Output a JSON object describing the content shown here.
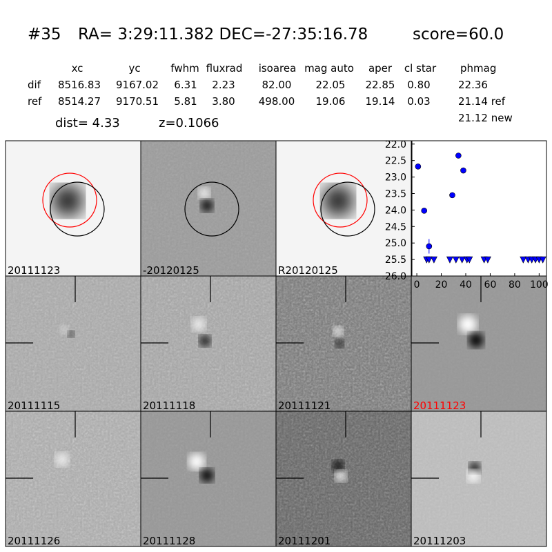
{
  "header": {
    "id": "#35",
    "coords": "RA= 3:29:11.382 DEC=-27:35:16.78",
    "score": "score=60.0"
  },
  "table": {
    "columns": [
      "xc",
      "yc",
      "fwhm",
      "fluxrad",
      "isoarea",
      "mag auto",
      "aper",
      "cl star",
      "phmag"
    ],
    "rows": [
      [
        "dif",
        "8516.83",
        "9167.02",
        "6.31",
        "2.23",
        "82.00",
        "22.05",
        "22.85",
        "0.80",
        "22.36"
      ],
      [
        "ref",
        "8514.27",
        "9170.51",
        "5.81",
        "3.80",
        "498.00",
        "19.06",
        "19.14",
        "0.03",
        "21.14 ref"
      ]
    ],
    "extra": "21.12 new"
  },
  "dist": "dist=  4.33",
  "redshift": "z=0.1066",
  "panels": [
    "20111123",
    "-20120125",
    "R20120125",
    "20111115",
    "20111118",
    "20111121",
    "20111123",
    "20111126",
    "20111128",
    "20111201",
    "20111203"
  ],
  "chart_data": {
    "type": "scatter",
    "xlim": [
      -4,
      106
    ],
    "xticks": [
      0,
      20,
      40,
      60,
      80,
      100
    ],
    "ylim": [
      26.0,
      21.9
    ],
    "yticks": [
      {
        "value": 22,
        "label": "22.0"
      },
      {
        "value": 22.5,
        "label": "22.5"
      },
      {
        "value": 23,
        "label": "23.0"
      },
      {
        "value": 23.5,
        "label": "23.5"
      },
      {
        "value": 24,
        "label": "24.0"
      },
      {
        "value": 24.5,
        "label": "24.5"
      },
      {
        "value": 25,
        "label": "25.0"
      },
      {
        "value": 25.5,
        "label": "25.5"
      },
      {
        "value": 26,
        "label": "26.0"
      }
    ],
    "series": [
      {
        "color": "#0000ff",
        "marker": "circle",
        "x": [
          1,
          6,
          10,
          29,
          34,
          38
        ],
        "values": [
          22.68,
          24.02,
          25.1,
          23.55,
          22.35,
          22.8
        ],
        "errors": [
          null,
          null,
          0.22,
          null,
          null,
          null
        ]
      },
      {
        "color": "#0000ff",
        "marker": "triangle",
        "x": [
          8,
          10,
          14,
          27,
          32,
          37,
          41,
          43,
          55,
          58,
          87,
          91,
          94,
          97,
          100,
          103
        ],
        "values": [
          25.5,
          25.5,
          25.5,
          25.5,
          25.5,
          25.5,
          25.5,
          25.5,
          25.5,
          25.5,
          25.5,
          25.5,
          25.5,
          25.5,
          25.5,
          25.5
        ]
      }
    ]
  }
}
